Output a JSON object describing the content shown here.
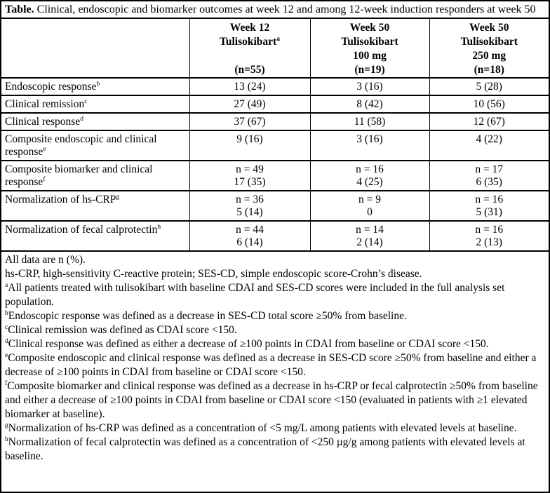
{
  "table": {
    "title_label": "Table.",
    "title_text": " Clinical, endoscopic and biomarker outcomes at week 12 and among 12-week induction responders at week 50",
    "header": {
      "stub": "",
      "columns": [
        {
          "line1": "Week 12",
          "line2": "Tulisokibart",
          "line2_sup": "a",
          "line3": "",
          "line4": "(n=55)"
        },
        {
          "line1": "Week 50",
          "line2": "Tulisokibart",
          "line2_sup": "",
          "line3": "100 mg",
          "line4": "(n=19)"
        },
        {
          "line1": "Week 50",
          "line2": "Tulisokibart",
          "line2_sup": "",
          "line3": "250 mg",
          "line4": "(n=18)"
        }
      ]
    },
    "rows": [
      {
        "label": "Endoscopic response",
        "sup": "b",
        "cells": [
          [
            "13 (24)"
          ],
          [
            "3 (16)"
          ],
          [
            "5 (28)"
          ]
        ]
      },
      {
        "label": "Clinical remission",
        "sup": "c",
        "cells": [
          [
            "27 (49)"
          ],
          [
            "8 (42)"
          ],
          [
            "10 (56)"
          ]
        ]
      },
      {
        "label": "Clinical response",
        "sup": "d",
        "cells": [
          [
            "37 (67)"
          ],
          [
            "11 (58)"
          ],
          [
            "12 (67)"
          ]
        ]
      },
      {
        "label": "Composite endoscopic and clinical response",
        "sup": "e",
        "cells": [
          [
            "9 (16)"
          ],
          [
            "3 (16)"
          ],
          [
            "4 (22)"
          ]
        ]
      },
      {
        "label": "Composite biomarker and clinical response",
        "sup": "f",
        "cells": [
          [
            "n = 49",
            "17 (35)"
          ],
          [
            "n = 16",
            "4 (25)"
          ],
          [
            "n = 17",
            "6 (35)"
          ]
        ]
      },
      {
        "label": "Normalization of hs-CRP",
        "sup": "g",
        "cells": [
          [
            "n = 36",
            "5 (14)"
          ],
          [
            "n = 9",
            "0"
          ],
          [
            "n = 16",
            "5 (31)"
          ]
        ]
      },
      {
        "label": "Normalization of fecal calprotectin",
        "sup": "h",
        "cells": [
          [
            "n = 44",
            "6 (14)"
          ],
          [
            "n = 14",
            "2 (14)"
          ],
          [
            "n = 16",
            "2 (13)"
          ]
        ]
      }
    ],
    "footnotes": [
      {
        "sup": "",
        "text": "All data are n (%)."
      },
      {
        "sup": "",
        "text": "hs-CRP, high-sensitivity C-reactive protein; SES-CD, simple endoscopic score-Crohn’s disease."
      },
      {
        "sup": "a",
        "text": "All patients treated with tulisokibart with baseline CDAI and SES-CD scores were included in the full analysis set population."
      },
      {
        "sup": "b",
        "text": "Endoscopic response was defined as a decrease in SES-CD total score ≥50% from baseline."
      },
      {
        "sup": "c",
        "text": "Clinical remission was defined as CDAI score <150."
      },
      {
        "sup": "d",
        "text": "Clinical response was defined as either a decrease of ≥100 points in CDAI from baseline or CDAI score <150."
      },
      {
        "sup": "e",
        "text": "Composite endoscopic and clinical response was defined as a decrease in SES-CD score ≥50% from baseline and either a decrease of ≥100 points in CDAI from baseline or CDAI score <150."
      },
      {
        "sup": "f",
        "text": "Composite biomarker and clinical response was defined as a decrease in hs-CRP or fecal calprotectin ≥50% from baseline and either a decrease of ≥100 points in CDAI from baseline or CDAI score <150 (evaluated in patients with ≥1 elevated biomarker at baseline)."
      },
      {
        "sup": "g",
        "text": "Normalization of hs-CRP was defined as a concentration of <5 mg/L among patients with elevated levels at baseline."
      },
      {
        "sup": "h",
        "text": "Normalization of fecal calprotectin was defined as a concentration of <250 µg/g among patients with elevated levels at baseline."
      }
    ]
  }
}
